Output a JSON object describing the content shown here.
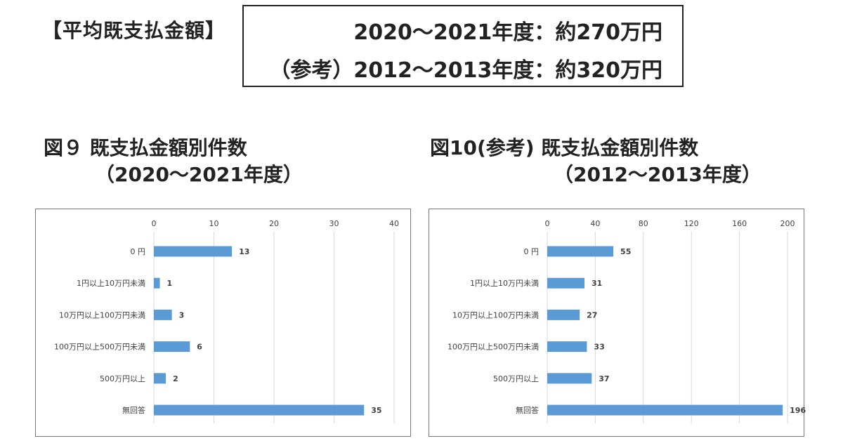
{
  "header": {
    "bracket_title": "【平均既支払金額】",
    "line1": "2020～2021年度：約270万円",
    "line2": "（参考）2012～2013年度：約320万円"
  },
  "chart_data": [
    {
      "type": "bar",
      "orientation": "horizontal",
      "title": "図９ 既支払金額別件数",
      "subtitle": "（2020～2021年度）",
      "categories": [
        "0 円",
        "1円以上10万円未満",
        "10万円以上100万円未満",
        "100万円以上500万円未満",
        "500万円以上",
        "無回答"
      ],
      "values": [
        13,
        1,
        3,
        6,
        2,
        35
      ],
      "xlim": [
        0,
        40
      ],
      "ticks": [
        0,
        10,
        20,
        30,
        40
      ],
      "tick_labels": [
        "0",
        "10",
        "20",
        "30",
        "40"
      ],
      "value_labels": [
        "13",
        "1",
        "3",
        "6",
        "2",
        "35"
      ],
      "grid": true,
      "color": "#5b9bd5"
    },
    {
      "type": "bar",
      "orientation": "horizontal",
      "title": "図10(参考) 既支払金額別件数",
      "subtitle": "（2012～2013年度）",
      "categories": [
        "0 円",
        "1円以上10万円未満",
        "10万円以上100万円未満",
        "100万円以上500万円未満",
        "500万円以上",
        "無回答"
      ],
      "values": [
        55,
        31,
        27,
        33,
        37,
        196
      ],
      "xlim": [
        0,
        200
      ],
      "ticks": [
        0,
        40,
        80,
        120,
        160,
        200
      ],
      "tick_labels": [
        "0",
        "40",
        "80",
        "120",
        "160",
        "200"
      ],
      "value_labels": [
        "55",
        "31",
        "27",
        "33",
        "37",
        "196"
      ],
      "grid": true,
      "color": "#5b9bd5"
    }
  ]
}
